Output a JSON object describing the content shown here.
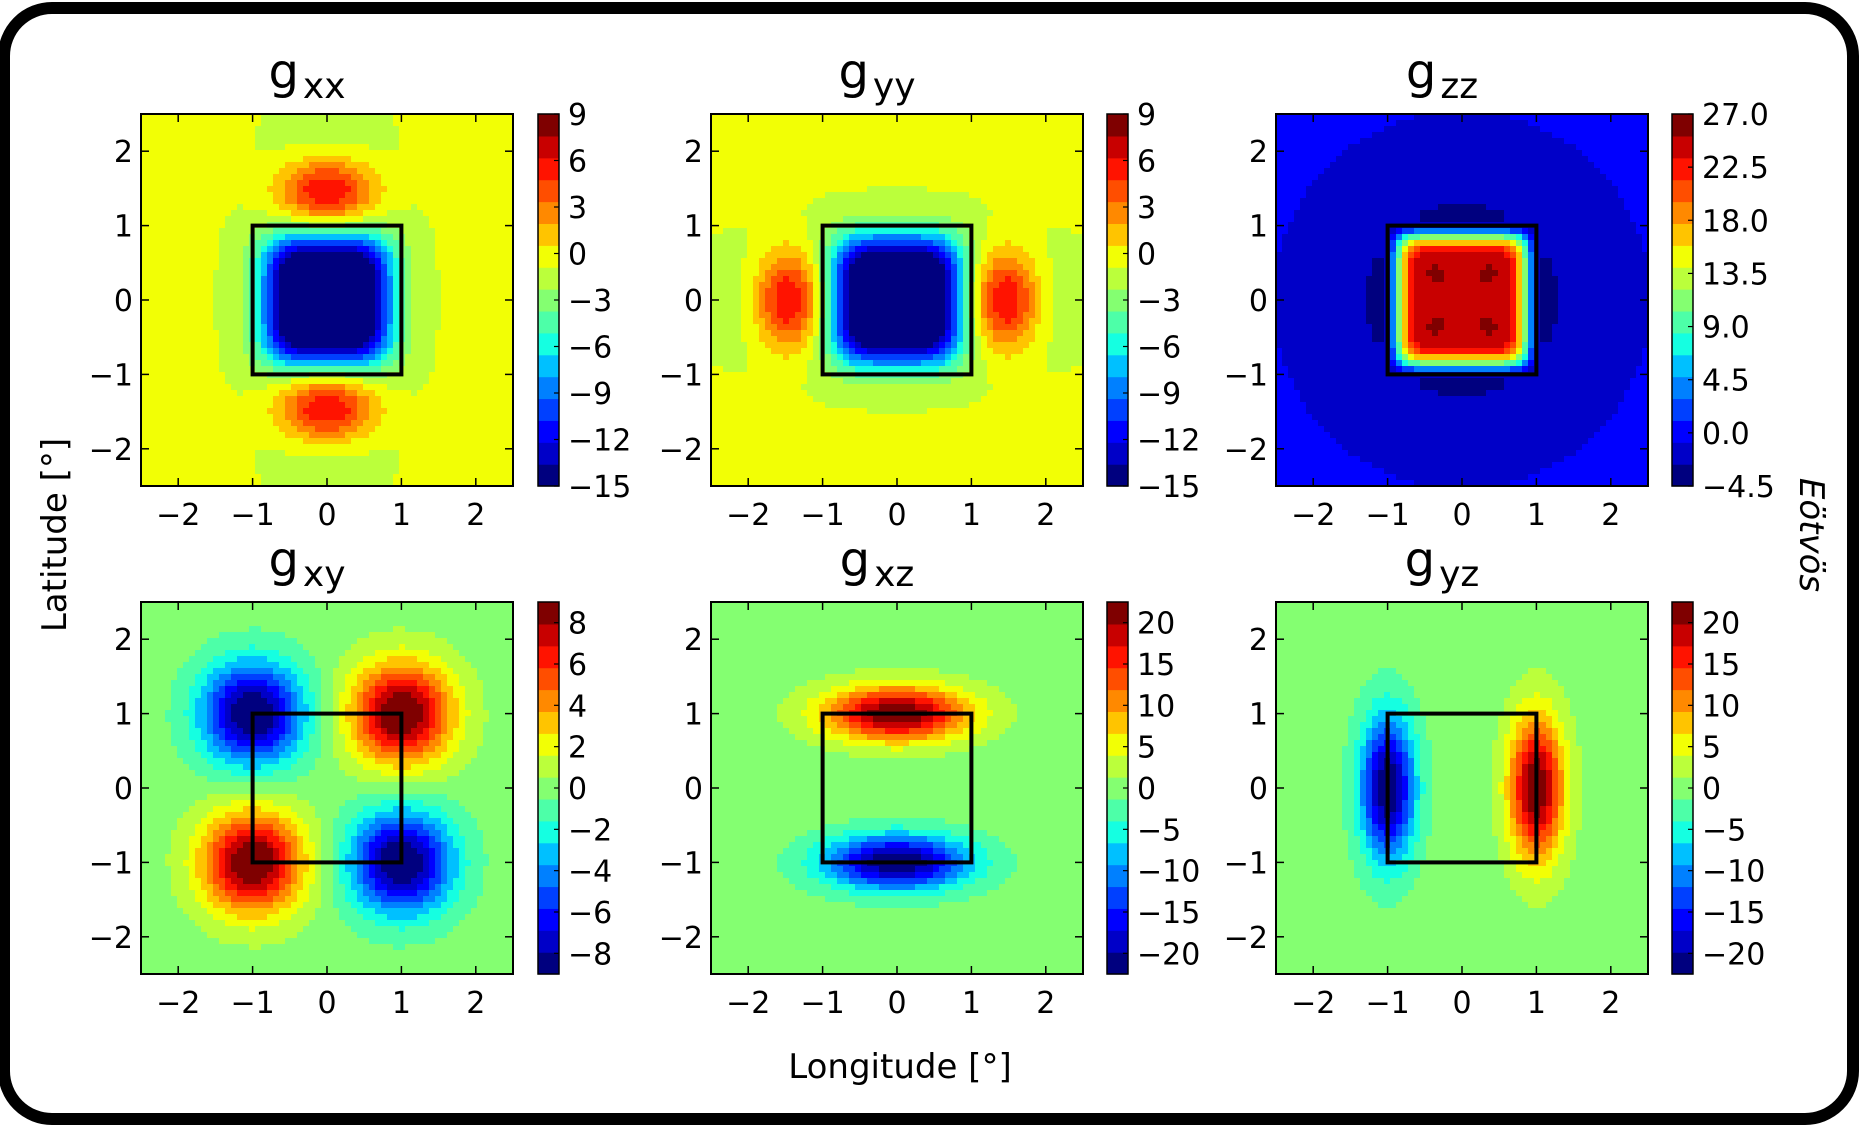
{
  "figure": {
    "xlabel": "Longitude [°]",
    "ylabel": "Latitude [°]",
    "colorbar_label": "Eötvös"
  },
  "colormap": [
    "#00007f",
    "#0000c8",
    "#0000ff",
    "#0040ff",
    "#0080ff",
    "#00c0ff",
    "#15ffe1",
    "#4dffa8",
    "#84ff71",
    "#bbff3b",
    "#f2ff05",
    "#ffc400",
    "#ff8900",
    "#ff4e00",
    "#ff1300",
    "#c80000",
    "#7f0000"
  ],
  "chart_data": [
    {
      "type": "heatmap",
      "component": "xx",
      "title": "g",
      "title_sub": "xx",
      "xticks": [
        "−2",
        "−1",
        "0",
        "1",
        "2"
      ],
      "yticks": [
        "2",
        "1",
        "0",
        "−1",
        "−2"
      ],
      "xlim": [
        -2.5,
        2.5
      ],
      "ylim": [
        -2.5,
        2.5
      ],
      "prism": {
        "x": [
          -1,
          1
        ],
        "y": [
          -1,
          1
        ]
      },
      "vmin": -15,
      "vmax": 9,
      "colorbar_ticks": [
        "9",
        "6",
        "3",
        "0",
        "−3",
        "−6",
        "−9",
        "−12",
        "−15"
      ],
      "colorbar_values": [
        9,
        6,
        3,
        0,
        -3,
        -6,
        -9,
        -12,
        -15
      ]
    },
    {
      "type": "heatmap",
      "component": "yy",
      "title": "g",
      "title_sub": "yy",
      "xticks": [
        "−2",
        "−1",
        "0",
        "1",
        "2"
      ],
      "yticks": [
        "2",
        "1",
        "0",
        "−1",
        "−2"
      ],
      "xlim": [
        -2.5,
        2.5
      ],
      "ylim": [
        -2.5,
        2.5
      ],
      "prism": {
        "x": [
          -1,
          1
        ],
        "y": [
          -1,
          1
        ]
      },
      "vmin": -15,
      "vmax": 9,
      "colorbar_ticks": [
        "9",
        "6",
        "3",
        "0",
        "−3",
        "−6",
        "−9",
        "−12",
        "−15"
      ],
      "colorbar_values": [
        9,
        6,
        3,
        0,
        -3,
        -6,
        -9,
        -12,
        -15
      ]
    },
    {
      "type": "heatmap",
      "component": "zz",
      "title": "g",
      "title_sub": "zz",
      "xticks": [
        "−2",
        "−1",
        "0",
        "1",
        "2"
      ],
      "yticks": [
        "2",
        "1",
        "0",
        "−1",
        "−2"
      ],
      "xlim": [
        -2.5,
        2.5
      ],
      "ylim": [
        -2.5,
        2.5
      ],
      "prism": {
        "x": [
          -1,
          1
        ],
        "y": [
          -1,
          1
        ]
      },
      "vmin": -4.5,
      "vmax": 27.0,
      "colorbar_ticks": [
        "27.0",
        "22.5",
        "18.0",
        "13.5",
        "9.0",
        "4.5",
        "0.0",
        "−4.5"
      ],
      "colorbar_values": [
        27.0,
        22.5,
        18.0,
        13.5,
        9.0,
        4.5,
        0.0,
        -4.5
      ]
    },
    {
      "type": "heatmap",
      "component": "xy",
      "title": "g",
      "title_sub": "xy",
      "xticks": [
        "−2",
        "−1",
        "0",
        "1",
        "2"
      ],
      "yticks": [
        "2",
        "1",
        "0",
        "−1",
        "−2"
      ],
      "xlim": [
        -2.5,
        2.5
      ],
      "ylim": [
        -2.5,
        2.5
      ],
      "prism": {
        "x": [
          -1,
          1
        ],
        "y": [
          -1,
          1
        ]
      },
      "vmin": -9,
      "vmax": 9,
      "colorbar_ticks": [
        "8",
        "6",
        "4",
        "2",
        "0",
        "−2",
        "−4",
        "−6",
        "−8"
      ],
      "colorbar_values": [
        8,
        6,
        4,
        2,
        0,
        -2,
        -4,
        -6,
        -8
      ]
    },
    {
      "type": "heatmap",
      "component": "xz",
      "title": "g",
      "title_sub": "xz",
      "xticks": [
        "−2",
        "−1",
        "0",
        "1",
        "2"
      ],
      "yticks": [
        "2",
        "1",
        "0",
        "−1",
        "−2"
      ],
      "xlim": [
        -2.5,
        2.5
      ],
      "ylim": [
        -2.5,
        2.5
      ],
      "prism": {
        "x": [
          -1,
          1
        ],
        "y": [
          -1,
          1
        ]
      },
      "vmin": -22.5,
      "vmax": 22.5,
      "colorbar_ticks": [
        "20",
        "15",
        "10",
        "5",
        "0",
        "−5",
        "−10",
        "−15",
        "−20"
      ],
      "colorbar_values": [
        20,
        15,
        10,
        5,
        0,
        -5,
        -10,
        -15,
        -20
      ]
    },
    {
      "type": "heatmap",
      "component": "yz",
      "title": "g",
      "title_sub": "yz",
      "xticks": [
        "−2",
        "−1",
        "0",
        "1",
        "2"
      ],
      "yticks": [
        "2",
        "1",
        "0",
        "−1",
        "−2"
      ],
      "xlim": [
        -2.5,
        2.5
      ],
      "ylim": [
        -2.5,
        2.5
      ],
      "prism": {
        "x": [
          -1,
          1
        ],
        "y": [
          -1,
          1
        ]
      },
      "vmin": -22.5,
      "vmax": 22.5,
      "colorbar_ticks": [
        "20",
        "15",
        "10",
        "5",
        "0",
        "−5",
        "−10",
        "−15",
        "−20"
      ],
      "colorbar_values": [
        20,
        15,
        10,
        5,
        0,
        -5,
        -10,
        -15,
        -20
      ]
    }
  ]
}
